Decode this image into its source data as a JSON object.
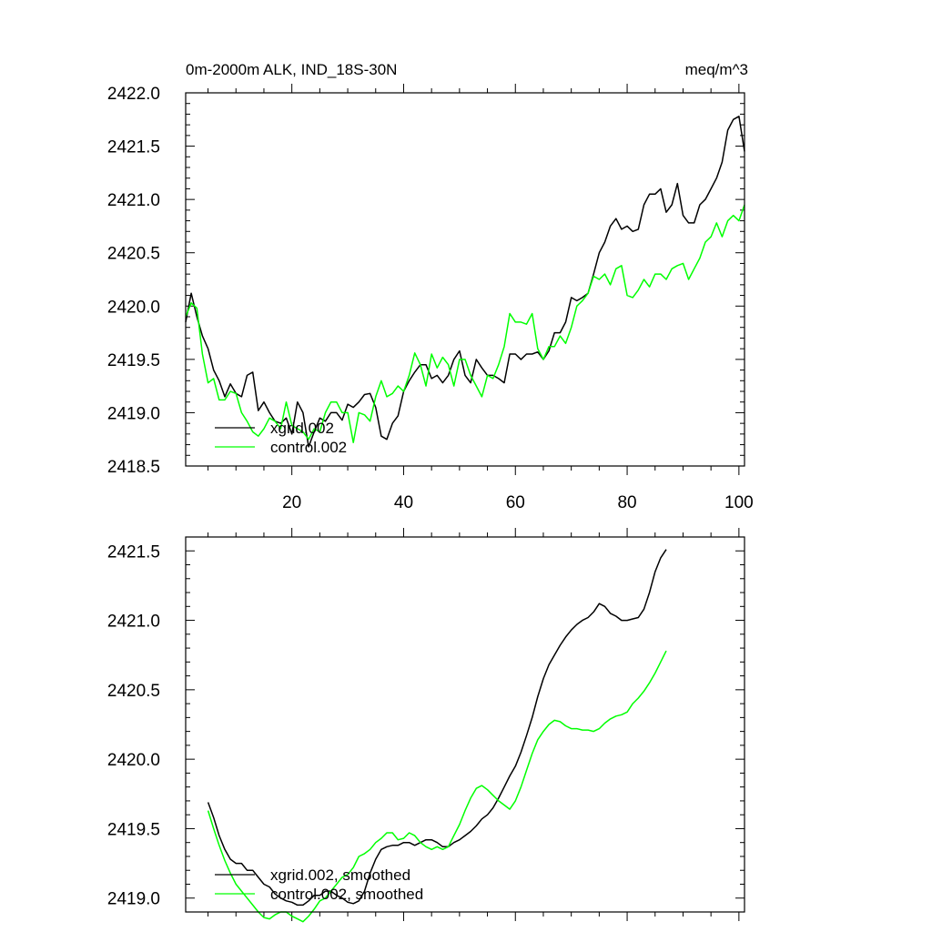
{
  "chart_data": [
    {
      "type": "line",
      "title_left": "0m-2000m ALK, IND_18S-30N",
      "title_right": "meq/m^3",
      "xlim": [
        1,
        101
      ],
      "ylim": [
        2418.5,
        2422.0
      ],
      "xticks": [
        20,
        40,
        60,
        80,
        100
      ],
      "xtick_labels": [
        "20",
        "40",
        "60",
        "80",
        "100"
      ],
      "yticks": [
        2418.5,
        2419.0,
        2419.5,
        2420.0,
        2420.5,
        2421.0,
        2421.5,
        2422.0
      ],
      "ytick_labels": [
        "2418.5",
        "2419.0",
        "2419.5",
        "2420.0",
        "2420.5",
        "2421.0",
        "2421.5",
        "2422.0"
      ],
      "grid": false,
      "legend_position": "bottom-left",
      "x_start": 1,
      "series": [
        {
          "name": "xgrid.002",
          "color": "#000000",
          "values": [
            2419.85,
            2420.12,
            2419.9,
            2419.72,
            2419.6,
            2419.4,
            2419.3,
            2419.15,
            2419.27,
            2419.18,
            2419.15,
            2419.35,
            2419.38,
            2419.02,
            2419.1,
            2419.0,
            2418.92,
            2418.9,
            2418.95,
            2418.8,
            2419.1,
            2419.0,
            2418.68,
            2418.82,
            2418.95,
            2418.92,
            2419.0,
            2419.0,
            2418.93,
            2419.08,
            2419.05,
            2419.1,
            2419.17,
            2419.18,
            2419.05,
            2418.78,
            2418.75,
            2418.9,
            2418.97,
            2419.2,
            2419.3,
            2419.38,
            2419.45,
            2419.45,
            2419.32,
            2419.35,
            2419.28,
            2419.35,
            2419.5,
            2419.58,
            2419.35,
            2419.28,
            2419.5,
            2419.42,
            2419.35,
            2419.35,
            2419.32,
            2419.28,
            2419.55,
            2419.55,
            2419.5,
            2419.55,
            2419.55,
            2419.57,
            2419.5,
            2419.58,
            2419.75,
            2419.75,
            2419.85,
            2420.08,
            2420.05,
            2420.08,
            2420.12,
            2420.3,
            2420.5,
            2420.6,
            2420.75,
            2420.82,
            2420.72,
            2420.75,
            2420.7,
            2420.72,
            2420.95,
            2421.05,
            2421.05,
            2421.1,
            2420.88,
            2420.95,
            2421.15,
            2420.85,
            2420.78,
            2420.78,
            2420.95,
            2421.0,
            2421.1,
            2421.2,
            2421.35,
            2421.65,
            2421.75,
            2421.78,
            2421.45
          ]
        },
        {
          "name": "control.002",
          "color": "#00ff00",
          "values": [
            2419.9,
            2420.03,
            2419.98,
            2419.55,
            2419.28,
            2419.32,
            2419.12,
            2419.12,
            2419.2,
            2419.18,
            2419.0,
            2418.92,
            2418.82,
            2418.78,
            2418.85,
            2418.95,
            2418.92,
            2418.85,
            2419.1,
            2418.88,
            2418.85,
            2418.82,
            2418.75,
            2418.85,
            2418.82,
            2419.0,
            2419.1,
            2419.1,
            2419.0,
            2419.0,
            2418.72,
            2419.0,
            2418.98,
            2418.92,
            2419.15,
            2419.3,
            2419.15,
            2419.18,
            2419.25,
            2419.2,
            2419.35,
            2419.56,
            2419.45,
            2419.25,
            2419.55,
            2419.42,
            2419.52,
            2419.45,
            2419.25,
            2419.5,
            2419.5,
            2419.35,
            2419.25,
            2419.15,
            2419.35,
            2419.32,
            2419.45,
            2419.62,
            2419.93,
            2419.85,
            2419.85,
            2419.83,
            2419.93,
            2419.6,
            2419.5,
            2419.62,
            2419.62,
            2419.72,
            2419.65,
            2419.8,
            2420.0,
            2420.05,
            2420.12,
            2420.28,
            2420.25,
            2420.3,
            2420.2,
            2420.35,
            2420.38,
            2420.1,
            2420.08,
            2420.15,
            2420.25,
            2420.18,
            2420.3,
            2420.3,
            2420.25,
            2420.35,
            2420.38,
            2420.4,
            2420.25,
            2420.35,
            2420.45,
            2420.6,
            2420.65,
            2420.78,
            2420.65,
            2420.8,
            2420.85,
            2420.8,
            2420.95
          ]
        }
      ]
    },
    {
      "type": "line",
      "xlim": [
        1,
        101
      ],
      "ylim": [
        2418.9,
        2421.6
      ],
      "xticks": [
        20,
        40,
        60,
        80,
        100
      ],
      "xtick_labels": [],
      "yticks": [
        2419.0,
        2419.5,
        2420.0,
        2420.5,
        2421.0,
        2421.5
      ],
      "ytick_labels": [
        "2419.0",
        "2419.5",
        "2420.0",
        "2420.5",
        "2421.0",
        "2421.5"
      ],
      "grid": false,
      "legend_position": "bottom-left",
      "x_start": 5,
      "series": [
        {
          "name": "xgrid.002, smoothed",
          "color": "#000000",
          "values": [
            2419.69,
            2419.58,
            2419.45,
            2419.35,
            2419.28,
            2419.25,
            2419.25,
            2419.2,
            2419.2,
            2419.15,
            2419.1,
            2419.08,
            2419.03,
            2419.0,
            2418.98,
            2418.97,
            2418.95,
            2418.95,
            2418.98,
            2419.02,
            2419.02,
            2419.05,
            2419.05,
            2419.02,
            2419.0,
            2418.97,
            2418.96,
            2418.98,
            2419.05,
            2419.18,
            2419.28,
            2419.35,
            2419.37,
            2419.38,
            2419.38,
            2419.4,
            2419.4,
            2419.38,
            2419.4,
            2419.42,
            2419.42,
            2419.4,
            2419.37,
            2419.37,
            2419.4,
            2419.42,
            2419.45,
            2419.48,
            2419.52,
            2419.57,
            2419.6,
            2419.65,
            2419.72,
            2419.8,
            2419.88,
            2419.95,
            2420.05,
            2420.17,
            2420.3,
            2420.45,
            2420.58,
            2420.68,
            2420.75,
            2420.82,
            2420.88,
            2420.93,
            2420.97,
            2421.0,
            2421.02,
            2421.06,
            2421.12,
            2421.1,
            2421.05,
            2421.03,
            2421.0,
            2421.0,
            2421.01,
            2421.02,
            2421.08,
            2421.2,
            2421.35,
            2421.45,
            2421.51
          ]
        },
        {
          "name": "control.002, smoothed",
          "color": "#00ff00",
          "values": [
            2419.63,
            2419.5,
            2419.38,
            2419.27,
            2419.18,
            2419.1,
            2419.05,
            2419.0,
            2418.95,
            2418.9,
            2418.86,
            2418.85,
            2418.88,
            2418.9,
            2418.9,
            2418.87,
            2418.85,
            2418.83,
            2418.87,
            2418.92,
            2418.98,
            2419.0,
            2419.05,
            2419.1,
            2419.15,
            2419.17,
            2419.22,
            2419.3,
            2419.32,
            2419.35,
            2419.4,
            2419.43,
            2419.47,
            2419.47,
            2419.42,
            2419.43,
            2419.47,
            2419.45,
            2419.4,
            2419.37,
            2419.35,
            2419.37,
            2419.35,
            2419.37,
            2419.45,
            2419.53,
            2419.63,
            2419.72,
            2419.79,
            2419.81,
            2419.78,
            2419.74,
            2419.7,
            2419.67,
            2419.64,
            2419.7,
            2419.8,
            2419.92,
            2420.04,
            2420.14,
            2420.2,
            2420.25,
            2420.28,
            2420.27,
            2420.24,
            2420.22,
            2420.22,
            2420.21,
            2420.21,
            2420.2,
            2420.22,
            2420.26,
            2420.29,
            2420.31,
            2420.32,
            2420.34,
            2420.4,
            2420.44,
            2420.49,
            2420.55,
            2420.62,
            2420.7,
            2420.78
          ]
        }
      ]
    }
  ]
}
